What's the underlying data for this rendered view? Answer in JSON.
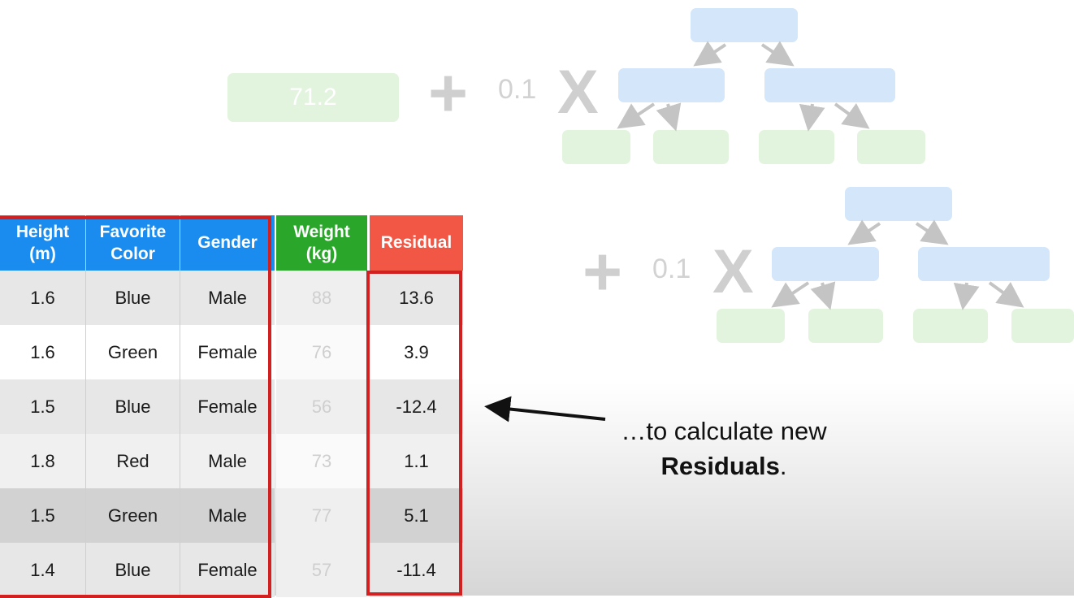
{
  "initial_prediction": "71.2",
  "learning_rate_1": "0.1",
  "learning_rate_2": "0.1",
  "table": {
    "headers": {
      "height": "Height\n(m)",
      "color": "Favorite\nColor",
      "gender": "Gender",
      "weight": "Weight\n(kg)",
      "residual": "Residual"
    },
    "rows": [
      {
        "height": "1.6",
        "color": "Blue",
        "gender": "Male",
        "weight": "88",
        "residual": "13.6"
      },
      {
        "height": "1.6",
        "color": "Green",
        "gender": "Female",
        "weight": "76",
        "residual": "3.9"
      },
      {
        "height": "1.5",
        "color": "Blue",
        "gender": "Female",
        "weight": "56",
        "residual": "-12.4"
      },
      {
        "height": "1.8",
        "color": "Red",
        "gender": "Male",
        "weight": "73",
        "residual": "1.1"
      },
      {
        "height": "1.5",
        "color": "Green",
        "gender": "Male",
        "weight": "77",
        "residual": "5.1"
      },
      {
        "height": "1.4",
        "color": "Blue",
        "gender": "Female",
        "weight": "57",
        "residual": "-11.4"
      }
    ]
  },
  "caption": {
    "line1": "…to calculate new",
    "bold": "Residuals",
    "suffix": "."
  },
  "colors": {
    "blue_header": "#1a8cf0",
    "green_header": "#2aa72a",
    "red_header": "#f25645",
    "highlight_border": "#d22020"
  }
}
